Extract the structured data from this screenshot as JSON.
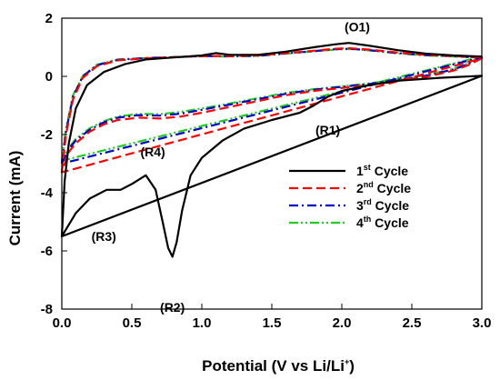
{
  "chart_data": {
    "type": "line",
    "xlabel": "Potential (V vs Li/Li",
    "xlabel_sup": "+",
    "xlabel_end": ")",
    "ylabel": "Current (mA)",
    "xlim": [
      0.0,
      3.0
    ],
    "ylim": [
      -8,
      2
    ],
    "xticks": [
      "0.0",
      "0.5",
      "1.0",
      "1.5",
      "2.0",
      "2.5",
      "3.0"
    ],
    "yticks": [
      "-8",
      "-6",
      "-4",
      "-2",
      "0",
      "2"
    ],
    "grid": false,
    "legend_position": "lower-right",
    "series": [
      {
        "num": "1",
        "sup": "st",
        "suffix": " Cycle",
        "color": "#000000",
        "dash": "solid",
        "upper": [
          [
            0.0,
            -5.5
          ],
          [
            0.02,
            -3.6
          ],
          [
            0.05,
            -2.3
          ],
          [
            0.1,
            -1.1
          ],
          [
            0.18,
            -0.3
          ],
          [
            0.3,
            0.15
          ],
          [
            0.45,
            0.42
          ],
          [
            0.6,
            0.58
          ],
          [
            0.8,
            0.65
          ],
          [
            1.0,
            0.72
          ],
          [
            1.1,
            0.8
          ],
          [
            1.2,
            0.74
          ],
          [
            1.4,
            0.74
          ],
          [
            1.6,
            0.85
          ],
          [
            1.8,
            1.0
          ],
          [
            1.95,
            1.1
          ],
          [
            2.05,
            1.15
          ],
          [
            2.2,
            1.05
          ],
          [
            2.4,
            0.9
          ],
          [
            2.6,
            0.78
          ],
          [
            2.8,
            0.72
          ],
          [
            3.0,
            0.68
          ]
        ],
        "lower": [
          [
            3.0,
            0.02
          ],
          [
            2.7,
            -0.05
          ],
          [
            2.4,
            -0.15
          ],
          [
            2.2,
            -0.3
          ],
          [
            2.0,
            -0.5
          ],
          [
            1.9,
            -0.7
          ],
          [
            1.8,
            -1.0
          ],
          [
            1.7,
            -1.25
          ],
          [
            1.5,
            -1.5
          ],
          [
            1.3,
            -1.8
          ],
          [
            1.15,
            -2.2
          ],
          [
            1.0,
            -2.8
          ],
          [
            0.92,
            -3.4
          ],
          [
            0.86,
            -4.6
          ],
          [
            0.82,
            -5.7
          ],
          [
            0.79,
            -6.2
          ],
          [
            0.76,
            -5.9
          ],
          [
            0.72,
            -5.0
          ],
          [
            0.67,
            -3.9
          ],
          [
            0.6,
            -3.4
          ],
          [
            0.5,
            -3.7
          ],
          [
            0.42,
            -3.9
          ],
          [
            0.32,
            -3.9
          ],
          [
            0.2,
            -4.2
          ],
          [
            0.1,
            -4.7
          ],
          [
            0.0,
            -5.5
          ]
        ]
      },
      {
        "num": "2",
        "sup": "nd",
        "suffix": " Cycle",
        "color": "#ff0000",
        "dash": "10,5",
        "upper": [
          [
            0.0,
            -3.3
          ],
          [
            0.03,
            -2.0
          ],
          [
            0.08,
            -0.8
          ],
          [
            0.15,
            -0.05
          ],
          [
            0.25,
            0.35
          ],
          [
            0.4,
            0.55
          ],
          [
            0.6,
            0.62
          ],
          [
            0.8,
            0.66
          ],
          [
            1.0,
            0.7
          ],
          [
            1.2,
            0.7
          ],
          [
            1.4,
            0.72
          ],
          [
            1.6,
            0.8
          ],
          [
            1.8,
            0.88
          ],
          [
            1.95,
            0.95
          ],
          [
            2.05,
            0.97
          ],
          [
            2.2,
            0.92
          ],
          [
            2.4,
            0.82
          ],
          [
            2.6,
            0.74
          ],
          [
            2.8,
            0.7
          ],
          [
            3.0,
            0.65
          ]
        ],
        "lower": [
          [
            3.0,
            0.62
          ],
          [
            2.9,
            0.38
          ],
          [
            2.8,
            0.2
          ],
          [
            2.6,
            -0.02
          ],
          [
            2.4,
            -0.15
          ],
          [
            2.2,
            -0.3
          ],
          [
            2.0,
            -0.4
          ],
          [
            1.8,
            -0.5
          ],
          [
            1.6,
            -0.65
          ],
          [
            1.4,
            -0.85
          ],
          [
            1.2,
            -1.05
          ],
          [
            1.0,
            -1.25
          ],
          [
            0.85,
            -1.38
          ],
          [
            0.7,
            -1.45
          ],
          [
            0.55,
            -1.42
          ],
          [
            0.4,
            -1.5
          ],
          [
            0.3,
            -1.65
          ],
          [
            0.2,
            -1.9
          ],
          [
            0.1,
            -2.3
          ],
          [
            0.05,
            -2.6
          ],
          [
            0.0,
            -3.3
          ]
        ]
      },
      {
        "num": "3",
        "sup": "rd",
        "suffix": " Cycle",
        "color": "#0000cc",
        "dash": "10,4,2,4",
        "upper": [
          [
            0.0,
            -3.0
          ],
          [
            0.03,
            -1.9
          ],
          [
            0.08,
            -0.7
          ],
          [
            0.15,
            0.0
          ],
          [
            0.25,
            0.38
          ],
          [
            0.4,
            0.57
          ],
          [
            0.6,
            0.63
          ],
          [
            0.8,
            0.66
          ],
          [
            1.0,
            0.7
          ],
          [
            1.2,
            0.69
          ],
          [
            1.4,
            0.71
          ],
          [
            1.6,
            0.79
          ],
          [
            1.8,
            0.87
          ],
          [
            1.95,
            0.93
          ],
          [
            2.05,
            0.95
          ],
          [
            2.2,
            0.9
          ],
          [
            2.4,
            0.8
          ],
          [
            2.6,
            0.73
          ],
          [
            2.8,
            0.69
          ],
          [
            3.0,
            0.65
          ]
        ],
        "lower": [
          [
            3.0,
            0.66
          ],
          [
            2.9,
            0.42
          ],
          [
            2.8,
            0.24
          ],
          [
            2.6,
            0.02
          ],
          [
            2.4,
            -0.12
          ],
          [
            2.2,
            -0.26
          ],
          [
            2.0,
            -0.36
          ],
          [
            1.8,
            -0.46
          ],
          [
            1.6,
            -0.6
          ],
          [
            1.4,
            -0.78
          ],
          [
            1.2,
            -0.97
          ],
          [
            1.0,
            -1.15
          ],
          [
            0.85,
            -1.28
          ],
          [
            0.7,
            -1.35
          ],
          [
            0.55,
            -1.33
          ],
          [
            0.4,
            -1.42
          ],
          [
            0.3,
            -1.58
          ],
          [
            0.2,
            -1.83
          ],
          [
            0.1,
            -2.2
          ],
          [
            0.05,
            -2.5
          ],
          [
            0.0,
            -3.0
          ]
        ]
      },
      {
        "num": "4",
        "sup": "th",
        "suffix": " Cycle",
        "color": "#22cc22",
        "dash": "10,3,2,3,2,3",
        "upper": [
          [
            0.0,
            -2.9
          ],
          [
            0.03,
            -1.8
          ],
          [
            0.08,
            -0.65
          ],
          [
            0.15,
            0.02
          ],
          [
            0.25,
            0.4
          ],
          [
            0.4,
            0.58
          ],
          [
            0.6,
            0.63
          ],
          [
            0.8,
            0.66
          ],
          [
            1.0,
            0.69
          ],
          [
            1.2,
            0.68
          ],
          [
            1.4,
            0.7
          ],
          [
            1.6,
            0.78
          ],
          [
            1.8,
            0.86
          ],
          [
            1.95,
            0.92
          ],
          [
            2.05,
            0.94
          ],
          [
            2.2,
            0.89
          ],
          [
            2.4,
            0.79
          ],
          [
            2.6,
            0.72
          ],
          [
            2.8,
            0.68
          ],
          [
            3.0,
            0.64
          ]
        ],
        "lower": [
          [
            3.0,
            0.68
          ],
          [
            2.9,
            0.44
          ],
          [
            2.8,
            0.26
          ],
          [
            2.6,
            0.04
          ],
          [
            2.4,
            -0.1
          ],
          [
            2.2,
            -0.24
          ],
          [
            2.0,
            -0.34
          ],
          [
            1.8,
            -0.44
          ],
          [
            1.6,
            -0.57
          ],
          [
            1.4,
            -0.75
          ],
          [
            1.2,
            -0.93
          ],
          [
            1.0,
            -1.1
          ],
          [
            0.85,
            -1.22
          ],
          [
            0.7,
            -1.3
          ],
          [
            0.55,
            -1.29
          ],
          [
            0.4,
            -1.38
          ],
          [
            0.3,
            -1.54
          ],
          [
            0.2,
            -1.78
          ],
          [
            0.1,
            -2.15
          ],
          [
            0.05,
            -2.45
          ],
          [
            0.0,
            -2.9
          ]
        ]
      }
    ],
    "annotations": [
      {
        "text": "(O1)",
        "x": 2.11,
        "y": 1.55
      },
      {
        "text": "(R1)",
        "x": 1.9,
        "y": -2.0
      },
      {
        "text": "(R2)",
        "x": 0.79,
        "y": -8.1
      },
      {
        "text": "(R3)",
        "x": 0.3,
        "y": -5.65
      },
      {
        "text": "(R4)",
        "x": 0.65,
        "y": -2.75
      }
    ]
  }
}
